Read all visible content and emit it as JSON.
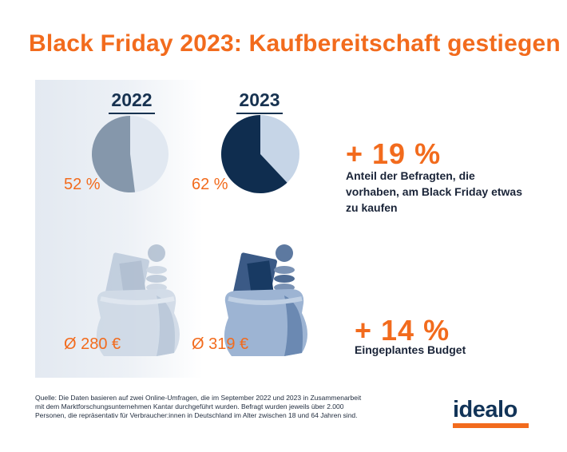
{
  "title": "Black Friday 2023: Kaufbereitschaft gestiegen",
  "chart_data": {
    "type": "pie",
    "title": "Black Friday 2023: Kaufbereitschaft gestiegen",
    "categories": [
      "2022",
      "2023"
    ],
    "series": [
      {
        "name": "Anteil der Befragten, die vorhaben, am Black Friday etwas zu kaufen",
        "values": [
          52,
          62
        ],
        "labels": [
          "52 %",
          "62 %"
        ]
      },
      {
        "name": "Eingeplantes Budget (€)",
        "values": [
          280,
          319
        ],
        "labels": [
          "Ø 280 €",
          "Ø 319 €"
        ]
      }
    ],
    "annotations": [
      {
        "value": "+ 19 %",
        "text": "Anteil der Befragten, die vorhaben, am Black Friday etwas zu kaufen"
      },
      {
        "value": "+ 14 %",
        "text": "Eingeplantes Budget"
      }
    ]
  },
  "colors": {
    "accent": "#f26b1d",
    "navy": "#173250",
    "pie_2022_main": "#8597ab",
    "pie_2022_rest": "#e1e8f1",
    "pie_2023_main": "#0f2d4f",
    "pie_2023_rest": "#c6d5e7"
  },
  "source": "Quelle: Die Daten basieren auf zwei Online-Umfragen, die im September 2022 und 2023 in Zusammenarbeit mit dem Marktforschungsunternehmen Kantar durchgeführt wurden. Befragt wurden jeweils über 2.000 Personen, die repräsentativ für Verbraucher:innen in Deutschland im Alter zwischen 18 und 64 Jahren sind.",
  "logo": "idealo"
}
